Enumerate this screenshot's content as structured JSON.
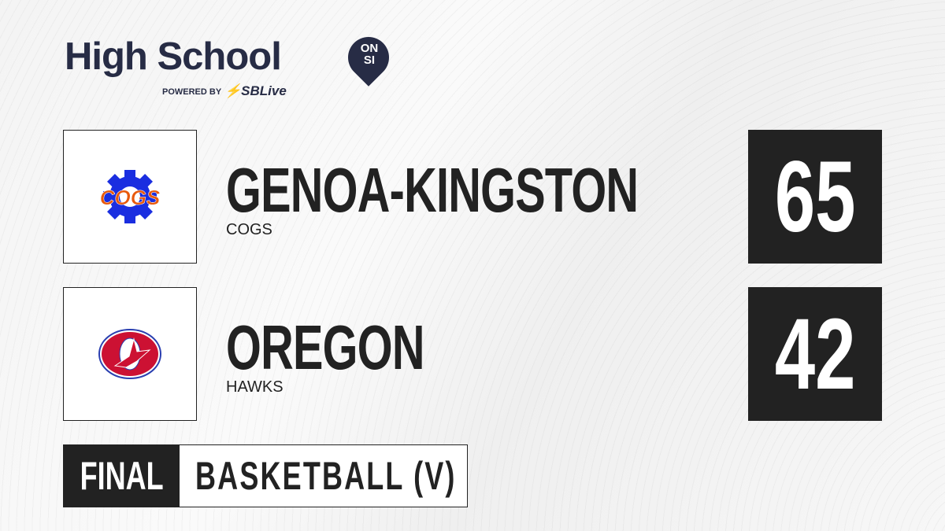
{
  "brand": {
    "title": "High School",
    "badge_top": "ON",
    "badge_bottom": "SI",
    "powered_by": "POWERED BY",
    "partner": "SBLive"
  },
  "teams": [
    {
      "name": "GENOA-KINGSTON",
      "mascot": "COGS",
      "score": "65",
      "logo_text": "COGS",
      "colors": {
        "primary": "#1a2ee0",
        "secondary": "#e8590c"
      }
    },
    {
      "name": "OREGON",
      "mascot": "HAWKS",
      "score": "42",
      "logo_text": "O",
      "colors": {
        "primary": "#cc1133",
        "secondary": "#2a3fb0"
      }
    }
  ],
  "status": "FINAL",
  "sport": "BASKETBALL (V)",
  "colors": {
    "dark": "#222222",
    "brand": "#272c45",
    "accent": "#2aa8e0"
  }
}
